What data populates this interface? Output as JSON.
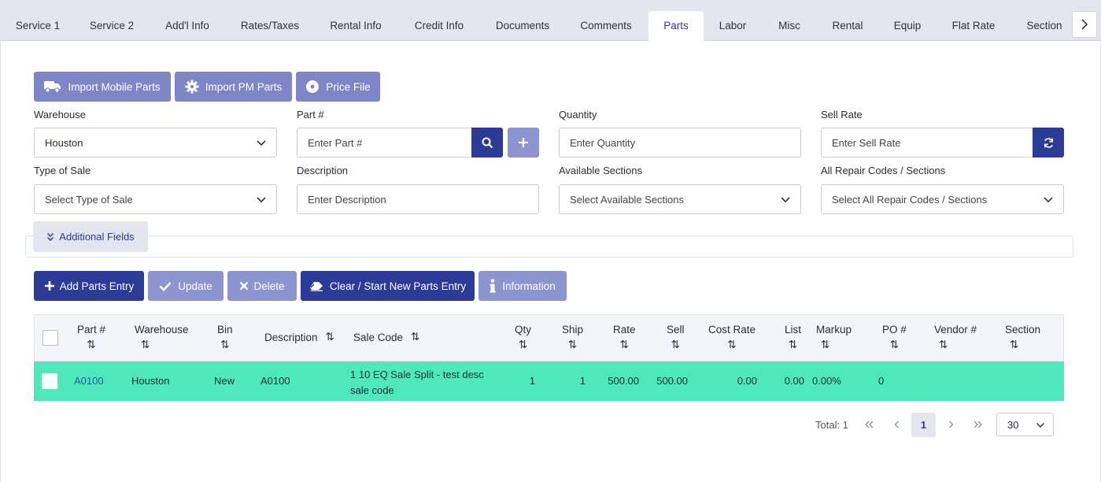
{
  "tabs": [
    {
      "label": "Service 1"
    },
    {
      "label": "Service 2"
    },
    {
      "label": "Add'l Info"
    },
    {
      "label": "Rates/Taxes"
    },
    {
      "label": "Rental Info"
    },
    {
      "label": "Credit Info"
    },
    {
      "label": "Documents"
    },
    {
      "label": "Comments"
    },
    {
      "label": "Parts"
    },
    {
      "label": "Labor"
    },
    {
      "label": "Misc"
    },
    {
      "label": "Rental"
    },
    {
      "label": "Equip"
    },
    {
      "label": "Flat Rate"
    },
    {
      "label": "Section"
    }
  ],
  "active_tab": "Parts",
  "top_buttons": {
    "import_mobile": "Import Mobile Parts",
    "import_pm": "Import PM Parts",
    "price_file": "Price File"
  },
  "form": {
    "warehouse": {
      "label": "Warehouse",
      "value": "Houston"
    },
    "part_no": {
      "label": "Part #",
      "placeholder": "Enter Part #"
    },
    "quantity": {
      "label": "Quantity",
      "placeholder": "Enter Quantity"
    },
    "sell_rate": {
      "label": "Sell Rate",
      "placeholder": "Enter Sell Rate"
    },
    "type_of_sale": {
      "label": "Type of Sale",
      "placeholder": "Select Type of Sale"
    },
    "description": {
      "label": "Description",
      "placeholder": "Enter Description"
    },
    "available_sections": {
      "label": "Available Sections",
      "placeholder": "Select Available Sections"
    },
    "repair_codes": {
      "label": "All Repair Codes / Sections",
      "placeholder": "Select All Repair Codes / Sections"
    }
  },
  "additional_fields": "Additional Fields",
  "action_buttons": {
    "add": "Add Parts Entry",
    "update": "Update",
    "delete": "Delete",
    "clear": "Clear / Start New Parts Entry",
    "information": "Information"
  },
  "table": {
    "columns": [
      "Part #",
      "Warehouse",
      "Bin",
      "Description",
      "Sale Code",
      "Qty",
      "Ship",
      "Rate",
      "Sell",
      "Cost Rate",
      "List",
      "Markup",
      "PO #",
      "Vendor #",
      "Section"
    ],
    "rows": [
      {
        "part_no": "A0100",
        "warehouse": "Houston",
        "bin": "New",
        "description": "A0100",
        "sale_code_line1": "1 10 EQ Sale Split - test desc",
        "sale_code_line2": "sale code",
        "qty": "1",
        "ship": "1",
        "rate": "500.00",
        "sell": "500.00",
        "cost_rate": "0.00",
        "list": "0.00",
        "markup": "0.00%",
        "po_no": "0",
        "vendor_no": "",
        "section": ""
      }
    ]
  },
  "pagination": {
    "total": "Total: 1",
    "current_page": "1",
    "page_size": "30"
  },
  "colors": {
    "accent_dark": "#2b3b96",
    "accent_light": "#7d87c8",
    "row_highlight": "#4fe8bc",
    "tab_bar": "#e3e5ef"
  }
}
